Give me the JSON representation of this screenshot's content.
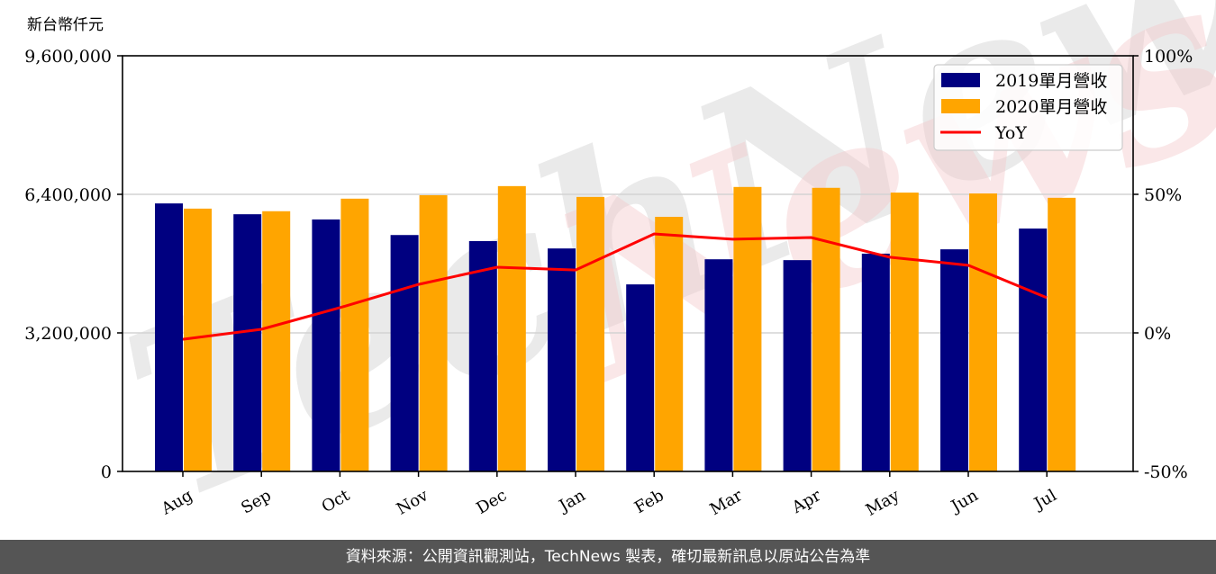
{
  "chart_data": {
    "type": "bar",
    "title": "",
    "unit_label": "新台幣仟元",
    "xlabel": "",
    "ylabel": "新台幣仟元",
    "categories": [
      "Aug",
      "Sep",
      "Oct",
      "Nov",
      "Dec",
      "Jan",
      "Feb",
      "Mar",
      "Apr",
      "May",
      "Jun",
      "Jul"
    ],
    "series": [
      {
        "name": "2019單月營收",
        "type": "bar",
        "axis": "left",
        "color": "#000080",
        "values": [
          6190000,
          5940000,
          5820000,
          5460000,
          5320000,
          5150000,
          4320000,
          4900000,
          4880000,
          5030000,
          5130000,
          5610000
        ]
      },
      {
        "name": "2020單月營收",
        "type": "bar",
        "axis": "left",
        "color": "#FFA500",
        "values": [
          6070000,
          6010000,
          6300000,
          6380000,
          6590000,
          6340000,
          5880000,
          6570000,
          6550000,
          6440000,
          6420000,
          6320000
        ]
      },
      {
        "name": "YoY",
        "type": "line",
        "axis": "right",
        "color": "#FF0000",
        "values": [
          -2.3,
          1.3,
          9.1,
          17.5,
          23.7,
          22.7,
          35.7,
          33.8,
          34.4,
          27.3,
          24.4,
          12.7
        ]
      }
    ],
    "ylim": [
      0,
      9600000
    ],
    "y2lim": [
      -50,
      100
    ],
    "yticks": [
      0,
      3200000,
      6400000,
      9600000
    ],
    "ytick_labels": [
      "0",
      "3,200,000",
      "6,400,000",
      "9,600,000"
    ],
    "y2ticks": [
      -50,
      0,
      50,
      100
    ],
    "y2tick_labels": [
      "-50%",
      "0%",
      "50%",
      "100%"
    ],
    "grid": "horizontal",
    "legend_position": "upper right",
    "watermark": "TechNews"
  },
  "footer": {
    "text": "資料來源：公開資訊觀測站，TechNews 製表，確切最新訊息以原站公告為準"
  }
}
